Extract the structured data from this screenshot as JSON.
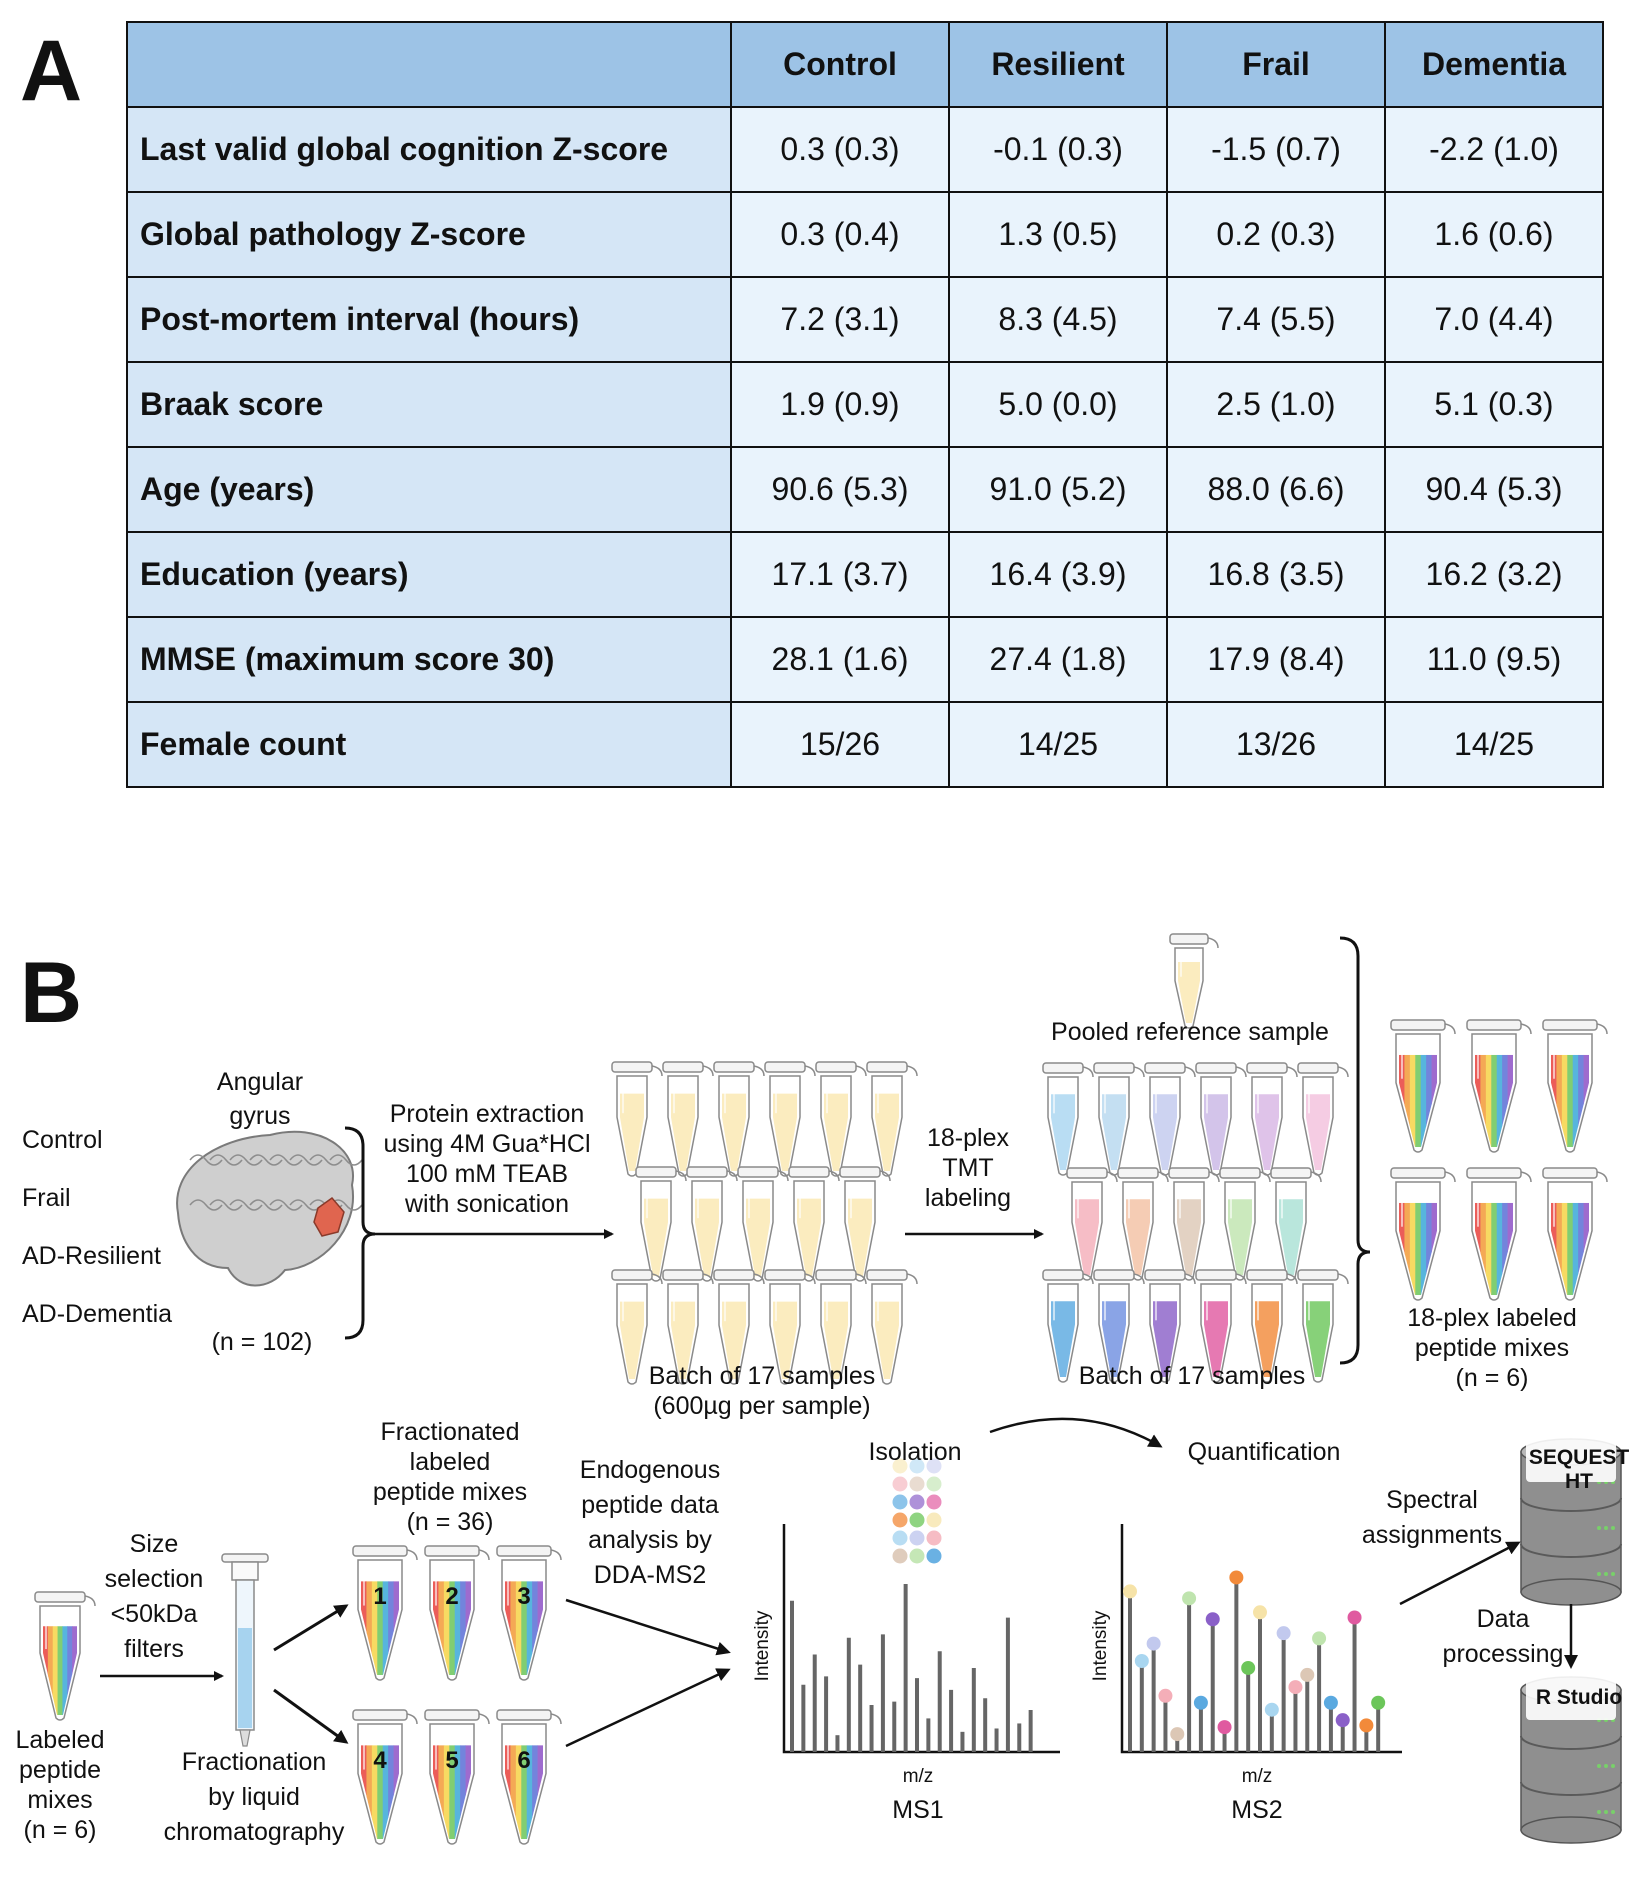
{
  "panel_a": {
    "letter": "A",
    "headers": [
      "",
      "Control",
      "Resilient",
      "Frail",
      "Dementia"
    ],
    "rows": [
      {
        "label": "Last valid global cognition Z-score",
        "values": [
          "0.3 (0.3)",
          "-0.1 (0.3)",
          "-1.5 (0.7)",
          "-2.2 (1.0)"
        ]
      },
      {
        "label": "Global pathology Z-score",
        "values": [
          "0.3 (0.4)",
          "1.3 (0.5)",
          "0.2 (0.3)",
          "1.6 (0.6)"
        ]
      },
      {
        "label": "Post-mortem interval (hours)",
        "values": [
          "7.2 (3.1)",
          "8.3 (4.5)",
          "7.4 (5.5)",
          "7.0 (4.4)"
        ]
      },
      {
        "label": "Braak score",
        "values": [
          "1.9 (0.9)",
          "5.0 (0.0)",
          "2.5 (1.0)",
          "5.1 (0.3)"
        ]
      },
      {
        "label": "Age (years)",
        "values": [
          "90.6 (5.3)",
          "91.0 (5.2)",
          "88.0 (6.6)",
          "90.4 (5.3)"
        ]
      },
      {
        "label": "Education (years)",
        "values": [
          "17.1 (3.7)",
          "16.4 (3.9)",
          "16.8 (3.5)",
          "16.2 (3.2)"
        ]
      },
      {
        "label": "MMSE (maximum score 30)",
        "values": [
          "28.1 (1.6)",
          "27.4 (1.8)",
          "17.9 (8.4)",
          "11.0 (9.5)"
        ]
      },
      {
        "label": "Female count",
        "values": [
          "15/26",
          "14/25",
          "13/26",
          "14/25"
        ]
      }
    ]
  },
  "panel_b": {
    "letter": "B",
    "groups": [
      "Control",
      "Frail",
      "AD-Resilient",
      "AD-Dementia"
    ],
    "region_line1": "Angular",
    "region_line2": "gyrus",
    "cohort_n": "(n = 102)",
    "extraction": [
      "Protein extraction",
      "using 4M Gua*HCl",
      "100 mM TEAB",
      "with sonication"
    ],
    "batch_caption": [
      "Batch of 17 samples",
      "(600µg per sample)"
    ],
    "tmt_label": [
      "18-plex",
      "TMT",
      "labeling"
    ],
    "pooled_reference": "Pooled reference sample",
    "tmt_batch_caption": "Batch of 17 samples",
    "labeled_mixes": [
      "18-plex labeled",
      "peptide mixes",
      "(n = 6)"
    ],
    "input_mixes": [
      "Labeled",
      "peptide",
      "mixes",
      "(n = 6)"
    ],
    "size_selection": [
      "Size",
      "selection",
      "<50kDa",
      "filters"
    ],
    "fractionation": [
      "Fractionation",
      "by liquid",
      "chromatography"
    ],
    "fractionated": [
      "Fractionated",
      "labeled",
      "peptide mixes",
      "(n = 36)"
    ],
    "fraction_numbers": [
      "1",
      "2",
      "3",
      "4",
      "5",
      "6"
    ],
    "dda": [
      "Endogenous",
      "peptide data",
      "analysis by",
      "DDA-MS2"
    ],
    "isolation": "Isolation",
    "quantification": "Quantification",
    "intensity_label": "Intensity",
    "mz_label": "m/z",
    "ms1": "MS1",
    "ms2": "MS2",
    "spectral": [
      "Spectral",
      "assignments"
    ],
    "db1": [
      "SEQUEST",
      "HT"
    ],
    "data_processing": [
      "Data",
      "processing"
    ],
    "db2": "R Studio",
    "ms1_peaks": [
      0.9,
      0.4,
      0.58,
      0.45,
      0.1,
      0.68,
      0.52,
      0.28,
      0.7,
      0.3,
      1.0,
      0.44,
      0.2,
      0.6,
      0.37,
      0.12,
      0.5,
      0.32,
      0.14,
      0.8,
      0.17,
      0.25
    ],
    "ms2_peaks": [
      0.9,
      0.5,
      0.6,
      0.3,
      0.08,
      0.86,
      0.26,
      0.74,
      0.12,
      0.98,
      0.46,
      0.78,
      0.22,
      0.66,
      0.35,
      0.42,
      0.63,
      0.26,
      0.16,
      0.75,
      0.13,
      0.26
    ],
    "colors": {
      "tube_yellow": "#fbe8b0",
      "tmt_row1": [
        "#a9d6f0",
        "#b6d8ef",
        "#c2c9ee",
        "#c9b6e6",
        "#d8b5e4",
        "#f3c0dc"
      ],
      "tmt_row2": [
        "#f4aeb8",
        "#f3c1a2",
        "#dcc7b5",
        "#bfe4ae",
        "#a9e0d4"
      ],
      "tmt_row3": [
        "#5aa9e0",
        "#6f8fe0",
        "#8a60c8",
        "#e05aa0",
        "#f28a3a",
        "#6cc65a"
      ],
      "rainbow": [
        "#e8413c",
        "#f29a38",
        "#f6d447",
        "#6cc65a",
        "#3aa9d8",
        "#5b6fd6",
        "#8e52c6"
      ],
      "column_fill": "#a7d3ef",
      "brain_highlight": "#e0654f",
      "ms_dots": [
        "#f6e3a8",
        "#a9d6f0",
        "#c2c9ee",
        "#f4aeb8",
        "#dcc7b5",
        "#bfe4ae",
        "#5aa9e0",
        "#8a60c8",
        "#e05aa0",
        "#f28a3a",
        "#6cc65a"
      ]
    }
  }
}
